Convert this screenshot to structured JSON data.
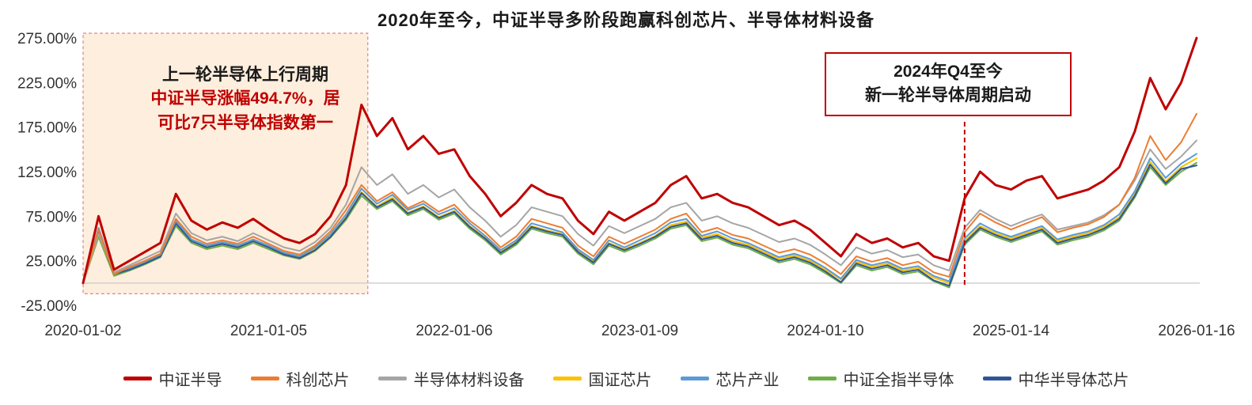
{
  "title": "2020年至今，中证半导多阶段跑赢科创芯片、半导体材料设备",
  "colors": {
    "accent_red": "#c00000",
    "zero_line": "#d0d0d0",
    "axis_text": "#333333",
    "region_fill": "#fdeedd",
    "region_border": "#d98a8a"
  },
  "annotations": {
    "cycle1_line1": "上一轮半导体上行周期",
    "cycle1_line2": "中证半导涨幅494.7%，居",
    "cycle1_line3": "可比7只半导体指数第一",
    "cycle2_line1": "2024年Q4至今",
    "cycle2_line2": "新一轮半导体周期启动"
  },
  "chart_data": {
    "type": "line",
    "title": "2020年至今，中证半导多阶段跑赢科创芯片、半导体材料设备",
    "xlabel": "",
    "ylabel": "",
    "ylim": [
      -25,
      275
    ],
    "grid": false,
    "legend_position": "bottom",
    "x_unit": "month",
    "x": [
      "2020-01",
      "2020-02",
      "2020-03",
      "2020-04",
      "2020-05",
      "2020-06",
      "2020-07",
      "2020-08",
      "2020-09",
      "2020-10",
      "2020-11",
      "2020-12",
      "2021-01",
      "2021-02",
      "2021-03",
      "2021-04",
      "2021-05",
      "2021-06",
      "2021-07",
      "2021-08",
      "2021-09",
      "2021-10",
      "2021-11",
      "2021-12",
      "2022-01",
      "2022-02",
      "2022-03",
      "2022-04",
      "2022-05",
      "2022-06",
      "2022-07",
      "2022-08",
      "2022-09",
      "2022-10",
      "2022-11",
      "2022-12",
      "2023-01",
      "2023-02",
      "2023-03",
      "2023-04",
      "2023-05",
      "2023-06",
      "2023-07",
      "2023-08",
      "2023-09",
      "2023-10",
      "2023-11",
      "2023-12",
      "2024-01",
      "2024-02",
      "2024-03",
      "2024-04",
      "2024-05",
      "2024-06",
      "2024-07",
      "2024-08",
      "2024-09",
      "2024-10",
      "2024-11",
      "2024-12",
      "2025-01",
      "2025-02",
      "2025-03",
      "2025-04",
      "2025-05",
      "2025-06",
      "2025-07",
      "2025-08",
      "2025-09",
      "2025-10",
      "2025-11",
      "2025-12",
      "2026-01"
    ],
    "x_ticks": [
      {
        "i": 0,
        "label": "2020-01-02"
      },
      {
        "i": 12,
        "label": "2021-01-05"
      },
      {
        "i": 24,
        "label": "2022-01-06"
      },
      {
        "i": 36,
        "label": "2023-01-09"
      },
      {
        "i": 48,
        "label": "2024-01-10"
      },
      {
        "i": 60,
        "label": "2025-01-14"
      },
      {
        "i": 72,
        "label": "2026-01-16"
      }
    ],
    "y_ticks": [
      {
        "v": -25,
        "label": "-25.00%"
      },
      {
        "v": 25,
        "label": "25.00%"
      },
      {
        "v": 75,
        "label": "75.00%"
      },
      {
        "v": 125,
        "label": "125.00%"
      },
      {
        "v": 175,
        "label": "175.00%"
      },
      {
        "v": 225,
        "label": "225.00%"
      },
      {
        "v": 275,
        "label": "275.00%"
      }
    ],
    "highlight_region": {
      "x_start": "2020-01",
      "x_end": "2021-07"
    },
    "dashed_line_x": "2024-10",
    "series": [
      {
        "name": "中证半导",
        "color": "#c00000",
        "values": [
          0,
          75,
          15,
          25,
          35,
          45,
          100,
          70,
          60,
          68,
          62,
          72,
          60,
          50,
          45,
          55,
          75,
          110,
          200,
          165,
          185,
          150,
          165,
          145,
          150,
          120,
          100,
          75,
          90,
          110,
          100,
          95,
          70,
          55,
          80,
          70,
          80,
          90,
          110,
          120,
          95,
          100,
          90,
          85,
          75,
          65,
          70,
          60,
          45,
          30,
          55,
          45,
          50,
          40,
          45,
          30,
          25,
          95,
          125,
          110,
          105,
          115,
          120,
          95,
          100,
          105,
          115,
          130,
          170,
          230,
          195,
          225,
          275
        ]
      },
      {
        "name": "科创芯片",
        "color": "#ed7d31",
        "values": [
          0,
          60,
          10,
          18,
          25,
          33,
          72,
          52,
          44,
          48,
          44,
          52,
          44,
          36,
          32,
          42,
          58,
          82,
          110,
          92,
          102,
          84,
          92,
          80,
          88,
          70,
          57,
          40,
          52,
          72,
          67,
          62,
          42,
          30,
          52,
          44,
          52,
          60,
          72,
          78,
          57,
          62,
          54,
          50,
          42,
          34,
          38,
          32,
          22,
          10,
          30,
          24,
          28,
          20,
          24,
          12,
          7,
          57,
          78,
          68,
          60,
          67,
          74,
          57,
          62,
          66,
          74,
          88,
          118,
          165,
          138,
          158,
          190
        ]
      },
      {
        "name": "半导体材料设备",
        "color": "#a5a5a5",
        "values": [
          0,
          55,
          12,
          20,
          28,
          36,
          78,
          56,
          48,
          52,
          47,
          56,
          48,
          40,
          36,
          46,
          62,
          88,
          130,
          110,
          122,
          100,
          110,
          96,
          105,
          85,
          70,
          52,
          65,
          85,
          80,
          75,
          55,
          42,
          64,
          56,
          64,
          72,
          85,
          90,
          70,
          75,
          67,
          62,
          54,
          46,
          50,
          43,
          32,
          20,
          40,
          33,
          37,
          29,
          32,
          20,
          14,
          62,
          82,
          72,
          64,
          71,
          77,
          60,
          64,
          68,
          76,
          88,
          115,
          150,
          128,
          142,
          160
        ]
      },
      {
        "name": "国证芯片",
        "color": "#ffc000",
        "values": [
          0,
          58,
          9,
          16,
          23,
          31,
          66,
          47,
          40,
          44,
          40,
          47,
          40,
          33,
          29,
          38,
          53,
          74,
          102,
          86,
          96,
          79,
          86,
          74,
          81,
          64,
          51,
          35,
          46,
          64,
          59,
          55,
          36,
          24,
          45,
          38,
          45,
          53,
          65,
          69,
          51,
          55,
          47,
          43,
          35,
          27,
          31,
          25,
          15,
          4,
          24,
          18,
          22,
          14,
          17,
          6,
          0,
          47,
          64,
          56,
          50,
          56,
          62,
          47,
          52,
          56,
          63,
          74,
          100,
          136,
          114,
          130,
          140
        ]
      },
      {
        "name": "芯片产业",
        "color": "#5b9bd5",
        "values": [
          0,
          62,
          11,
          17,
          24,
          32,
          70,
          49,
          42,
          46,
          42,
          49,
          42,
          34,
          30,
          40,
          55,
          77,
          106,
          89,
          99,
          82,
          89,
          77,
          84,
          67,
          53,
          37,
          48,
          67,
          62,
          57,
          38,
          26,
          48,
          40,
          48,
          56,
          68,
          72,
          53,
          58,
          50,
          45,
          37,
          29,
          33,
          27,
          17,
          5,
          26,
          20,
          24,
          16,
          19,
          8,
          2,
          50,
          67,
          58,
          52,
          58,
          64,
          49,
          54,
          58,
          65,
          77,
          103,
          140,
          118,
          134,
          145
        ]
      },
      {
        "name": "中证全指半导体",
        "color": "#70ad47",
        "values": [
          0,
          52,
          8,
          14,
          21,
          29,
          64,
          45,
          38,
          42,
          38,
          45,
          38,
          31,
          27,
          36,
          51,
          71,
          98,
          83,
          92,
          76,
          83,
          71,
          78,
          61,
          48,
          32,
          43,
          61,
          56,
          52,
          33,
          21,
          42,
          35,
          42,
          50,
          61,
          65,
          47,
          51,
          43,
          39,
          31,
          23,
          27,
          21,
          11,
          0,
          20,
          14,
          18,
          10,
          13,
          2,
          -5,
          43,
          60,
          52,
          46,
          52,
          58,
          43,
          48,
          52,
          59,
          70,
          96,
          130,
          110,
          125,
          135
        ]
      },
      {
        "name": "中华半导体芯片",
        "color": "#2f5597",
        "values": [
          0,
          57,
          10,
          15,
          22,
          30,
          67,
          47,
          40,
          44,
          40,
          47,
          40,
          32,
          28,
          37,
          52,
          73,
          101,
          85,
          94,
          78,
          85,
          73,
          80,
          63,
          50,
          34,
          45,
          63,
          58,
          54,
          35,
          23,
          44,
          37,
          44,
          52,
          63,
          67,
          49,
          53,
          45,
          41,
          33,
          25,
          29,
          23,
          13,
          1,
          22,
          16,
          20,
          12,
          15,
          3,
          -3,
          45,
          62,
          54,
          48,
          54,
          60,
          45,
          50,
          54,
          61,
          72,
          98,
          133,
          112,
          128,
          132
        ]
      }
    ]
  }
}
